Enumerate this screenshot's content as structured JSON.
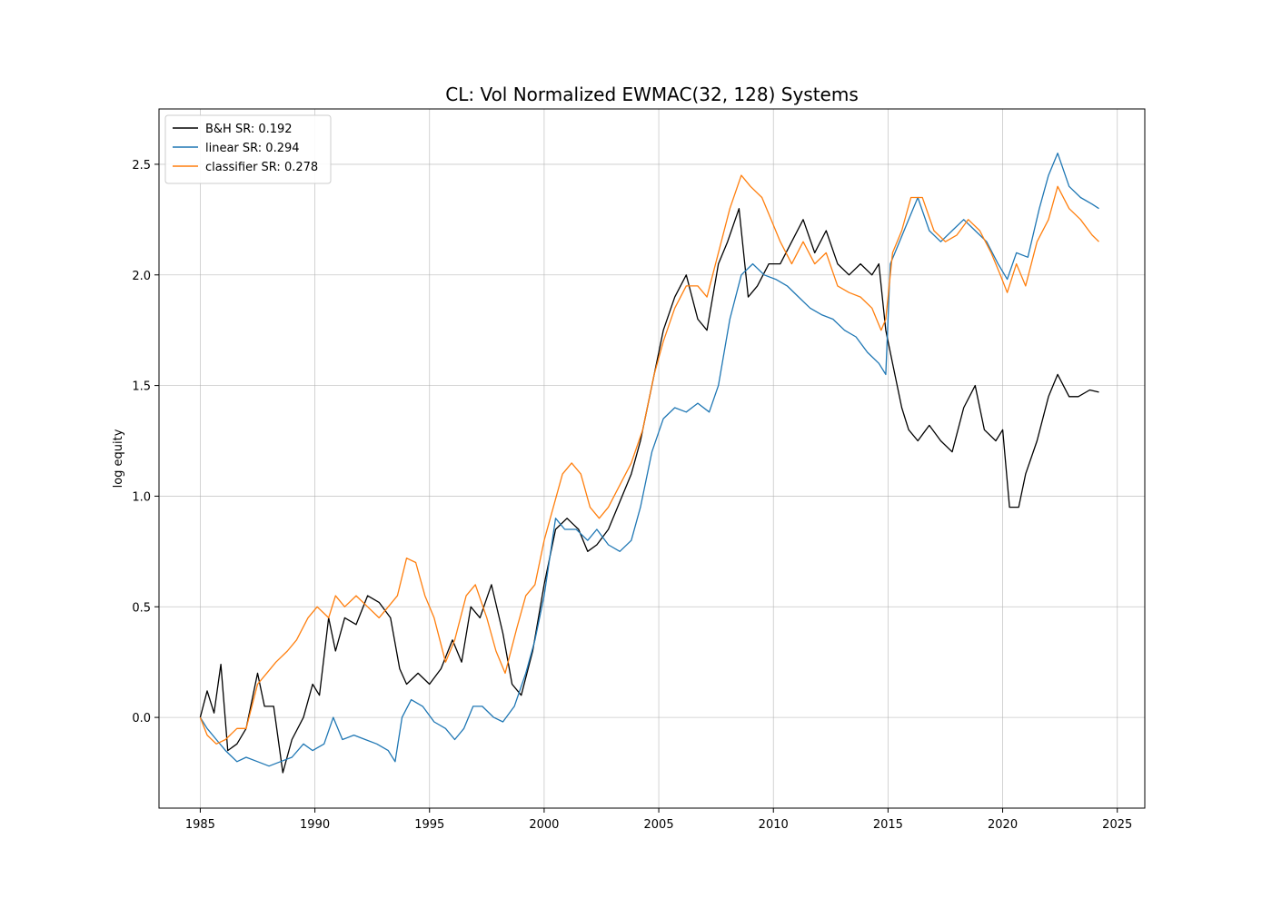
{
  "chart_data": {
    "type": "line",
    "title": "CL: Vol Normalized EWMAC(32, 128) Systems",
    "xlabel": "",
    "ylabel": "log equity",
    "xlim": [
      1983.2,
      2026.2
    ],
    "ylim": [
      -0.41,
      2.75
    ],
    "x_ticks": [
      1985,
      1990,
      1995,
      2000,
      2005,
      2010,
      2015,
      2020,
      2025
    ],
    "y_ticks": [
      0.0,
      0.5,
      1.0,
      1.5,
      2.0,
      2.5
    ],
    "grid": true,
    "legend_position": "top-left",
    "series": [
      {
        "name": "B&H SR: 0.192",
        "color": "#000000",
        "points": [
          [
            1985.0,
            0.0
          ],
          [
            1985.3,
            0.12
          ],
          [
            1985.6,
            0.02
          ],
          [
            1985.9,
            0.24
          ],
          [
            1986.2,
            -0.15
          ],
          [
            1986.6,
            -0.12
          ],
          [
            1987.0,
            -0.05
          ],
          [
            1987.5,
            0.2
          ],
          [
            1987.8,
            0.05
          ],
          [
            1988.2,
            0.05
          ],
          [
            1988.6,
            -0.25
          ],
          [
            1989.0,
            -0.1
          ],
          [
            1989.5,
            0.0
          ],
          [
            1989.9,
            0.15
          ],
          [
            1990.2,
            0.1
          ],
          [
            1990.6,
            0.45
          ],
          [
            1990.9,
            0.3
          ],
          [
            1991.3,
            0.45
          ],
          [
            1991.8,
            0.42
          ],
          [
            1992.3,
            0.55
          ],
          [
            1992.8,
            0.52
          ],
          [
            1993.3,
            0.45
          ],
          [
            1993.7,
            0.22
          ],
          [
            1994.0,
            0.15
          ],
          [
            1994.5,
            0.2
          ],
          [
            1995.0,
            0.15
          ],
          [
            1995.5,
            0.22
          ],
          [
            1996.0,
            0.35
          ],
          [
            1996.4,
            0.25
          ],
          [
            1996.8,
            0.5
          ],
          [
            1997.2,
            0.45
          ],
          [
            1997.7,
            0.6
          ],
          [
            1998.2,
            0.38
          ],
          [
            1998.6,
            0.15
          ],
          [
            1999.0,
            0.1
          ],
          [
            1999.5,
            0.3
          ],
          [
            2000.0,
            0.6
          ],
          [
            2000.5,
            0.85
          ],
          [
            2001.0,
            0.9
          ],
          [
            2001.5,
            0.85
          ],
          [
            2001.9,
            0.75
          ],
          [
            2002.3,
            0.78
          ],
          [
            2002.8,
            0.85
          ],
          [
            2003.2,
            0.95
          ],
          [
            2003.8,
            1.1
          ],
          [
            2004.2,
            1.25
          ],
          [
            2004.7,
            1.5
          ],
          [
            2005.2,
            1.75
          ],
          [
            2005.7,
            1.9
          ],
          [
            2006.2,
            2.0
          ],
          [
            2006.7,
            1.8
          ],
          [
            2007.1,
            1.75
          ],
          [
            2007.6,
            2.05
          ],
          [
            2008.0,
            2.15
          ],
          [
            2008.5,
            2.3
          ],
          [
            2008.9,
            1.9
          ],
          [
            2009.3,
            1.95
          ],
          [
            2009.8,
            2.05
          ],
          [
            2010.3,
            2.05
          ],
          [
            2010.8,
            2.15
          ],
          [
            2011.3,
            2.25
          ],
          [
            2011.8,
            2.1
          ],
          [
            2012.3,
            2.2
          ],
          [
            2012.8,
            2.05
          ],
          [
            2013.3,
            2.0
          ],
          [
            2013.8,
            2.05
          ],
          [
            2014.3,
            2.0
          ],
          [
            2014.6,
            2.05
          ],
          [
            2014.9,
            1.75
          ],
          [
            2015.2,
            1.6
          ],
          [
            2015.6,
            1.4
          ],
          [
            2015.9,
            1.3
          ],
          [
            2016.3,
            1.25
          ],
          [
            2016.8,
            1.32
          ],
          [
            2017.3,
            1.25
          ],
          [
            2017.8,
            1.2
          ],
          [
            2018.3,
            1.4
          ],
          [
            2018.8,
            1.5
          ],
          [
            2019.2,
            1.3
          ],
          [
            2019.7,
            1.25
          ],
          [
            2020.0,
            1.3
          ],
          [
            2020.3,
            0.95
          ],
          [
            2020.7,
            0.95
          ],
          [
            2021.0,
            1.1
          ],
          [
            2021.5,
            1.25
          ],
          [
            2022.0,
            1.45
          ],
          [
            2022.4,
            1.55
          ],
          [
            2022.9,
            1.45
          ],
          [
            2023.3,
            1.45
          ],
          [
            2023.8,
            1.48
          ],
          [
            2024.2,
            1.47
          ]
        ]
      },
      {
        "name": "linear SR: 0.294",
        "color": "#1f77b4",
        "points": [
          [
            1985.0,
            0.0
          ],
          [
            1985.3,
            -0.05
          ],
          [
            1985.7,
            -0.1
          ],
          [
            1986.1,
            -0.15
          ],
          [
            1986.6,
            -0.2
          ],
          [
            1987.0,
            -0.18
          ],
          [
            1987.5,
            -0.2
          ],
          [
            1988.0,
            -0.22
          ],
          [
            1988.5,
            -0.2
          ],
          [
            1989.0,
            -0.18
          ],
          [
            1989.5,
            -0.12
          ],
          [
            1989.9,
            -0.15
          ],
          [
            1990.4,
            -0.12
          ],
          [
            1990.8,
            0.0
          ],
          [
            1991.2,
            -0.1
          ],
          [
            1991.7,
            -0.08
          ],
          [
            1992.2,
            -0.1
          ],
          [
            1992.7,
            -0.12
          ],
          [
            1993.2,
            -0.15
          ],
          [
            1993.5,
            -0.2
          ],
          [
            1993.8,
            0.0
          ],
          [
            1994.2,
            0.08
          ],
          [
            1994.7,
            0.05
          ],
          [
            1995.2,
            -0.02
          ],
          [
            1995.7,
            -0.05
          ],
          [
            1996.1,
            -0.1
          ],
          [
            1996.5,
            -0.05
          ],
          [
            1996.9,
            0.05
          ],
          [
            1997.3,
            0.05
          ],
          [
            1997.8,
            0.0
          ],
          [
            1998.2,
            -0.02
          ],
          [
            1998.7,
            0.05
          ],
          [
            1999.2,
            0.2
          ],
          [
            1999.6,
            0.35
          ],
          [
            2000.0,
            0.55
          ],
          [
            2000.5,
            0.9
          ],
          [
            2000.9,
            0.85
          ],
          [
            2001.4,
            0.85
          ],
          [
            2001.9,
            0.8
          ],
          [
            2002.3,
            0.85
          ],
          [
            2002.8,
            0.78
          ],
          [
            2003.3,
            0.75
          ],
          [
            2003.8,
            0.8
          ],
          [
            2004.2,
            0.95
          ],
          [
            2004.7,
            1.2
          ],
          [
            2005.2,
            1.35
          ],
          [
            2005.7,
            1.4
          ],
          [
            2006.2,
            1.38
          ],
          [
            2006.7,
            1.42
          ],
          [
            2007.2,
            1.38
          ],
          [
            2007.6,
            1.5
          ],
          [
            2008.1,
            1.8
          ],
          [
            2008.6,
            2.0
          ],
          [
            2009.1,
            2.05
          ],
          [
            2009.6,
            2.0
          ],
          [
            2010.1,
            1.98
          ],
          [
            2010.6,
            1.95
          ],
          [
            2011.1,
            1.9
          ],
          [
            2011.6,
            1.85
          ],
          [
            2012.1,
            1.82
          ],
          [
            2012.6,
            1.8
          ],
          [
            2013.1,
            1.75
          ],
          [
            2013.6,
            1.72
          ],
          [
            2014.1,
            1.65
          ],
          [
            2014.6,
            1.6
          ],
          [
            2014.9,
            1.55
          ],
          [
            2015.1,
            2.05
          ],
          [
            2015.5,
            2.15
          ],
          [
            2015.9,
            2.25
          ],
          [
            2016.3,
            2.35
          ],
          [
            2016.8,
            2.2
          ],
          [
            2017.3,
            2.15
          ],
          [
            2017.8,
            2.2
          ],
          [
            2018.3,
            2.25
          ],
          [
            2018.8,
            2.2
          ],
          [
            2019.3,
            2.15
          ],
          [
            2019.8,
            2.05
          ],
          [
            2020.2,
            1.98
          ],
          [
            2020.6,
            2.1
          ],
          [
            2021.1,
            2.08
          ],
          [
            2021.6,
            2.3
          ],
          [
            2022.0,
            2.45
          ],
          [
            2022.4,
            2.55
          ],
          [
            2022.9,
            2.4
          ],
          [
            2023.4,
            2.35
          ],
          [
            2023.9,
            2.32
          ],
          [
            2024.2,
            2.3
          ]
        ]
      },
      {
        "name": "classifier SR: 0.278",
        "color": "#ff7f0e",
        "points": [
          [
            1985.0,
            0.0
          ],
          [
            1985.3,
            -0.08
          ],
          [
            1985.7,
            -0.12
          ],
          [
            1986.1,
            -0.1
          ],
          [
            1986.6,
            -0.05
          ],
          [
            1987.0,
            -0.05
          ],
          [
            1987.5,
            0.15
          ],
          [
            1987.9,
            0.2
          ],
          [
            1988.3,
            0.25
          ],
          [
            1988.8,
            0.3
          ],
          [
            1989.2,
            0.35
          ],
          [
            1989.7,
            0.45
          ],
          [
            1990.1,
            0.5
          ],
          [
            1990.6,
            0.45
          ],
          [
            1990.9,
            0.55
          ],
          [
            1991.3,
            0.5
          ],
          [
            1991.8,
            0.55
          ],
          [
            1992.3,
            0.5
          ],
          [
            1992.8,
            0.45
          ],
          [
            1993.2,
            0.5
          ],
          [
            1993.6,
            0.55
          ],
          [
            1994.0,
            0.72
          ],
          [
            1994.4,
            0.7
          ],
          [
            1994.8,
            0.55
          ],
          [
            1995.2,
            0.45
          ],
          [
            1995.7,
            0.25
          ],
          [
            1996.1,
            0.35
          ],
          [
            1996.6,
            0.55
          ],
          [
            1997.0,
            0.6
          ],
          [
            1997.5,
            0.45
          ],
          [
            1997.9,
            0.3
          ],
          [
            1998.3,
            0.2
          ],
          [
            1998.8,
            0.4
          ],
          [
            1999.2,
            0.55
          ],
          [
            1999.6,
            0.6
          ],
          [
            2000.0,
            0.8
          ],
          [
            2000.4,
            0.95
          ],
          [
            2000.8,
            1.1
          ],
          [
            2001.2,
            1.15
          ],
          [
            2001.6,
            1.1
          ],
          [
            2002.0,
            0.95
          ],
          [
            2002.4,
            0.9
          ],
          [
            2002.8,
            0.95
          ],
          [
            2003.3,
            1.05
          ],
          [
            2003.8,
            1.15
          ],
          [
            2004.3,
            1.3
          ],
          [
            2004.8,
            1.55
          ],
          [
            2005.2,
            1.7
          ],
          [
            2005.7,
            1.85
          ],
          [
            2006.2,
            1.95
          ],
          [
            2006.7,
            1.95
          ],
          [
            2007.1,
            1.9
          ],
          [
            2007.6,
            2.1
          ],
          [
            2008.1,
            2.3
          ],
          [
            2008.6,
            2.45
          ],
          [
            2009.0,
            2.4
          ],
          [
            2009.5,
            2.35
          ],
          [
            2009.9,
            2.25
          ],
          [
            2010.3,
            2.15
          ],
          [
            2010.8,
            2.05
          ],
          [
            2011.3,
            2.15
          ],
          [
            2011.8,
            2.05
          ],
          [
            2012.3,
            2.1
          ],
          [
            2012.8,
            1.95
          ],
          [
            2013.3,
            1.92
          ],
          [
            2013.8,
            1.9
          ],
          [
            2014.3,
            1.85
          ],
          [
            2014.7,
            1.75
          ],
          [
            2014.9,
            1.8
          ],
          [
            2015.2,
            2.1
          ],
          [
            2015.6,
            2.2
          ],
          [
            2016.0,
            2.35
          ],
          [
            2016.5,
            2.35
          ],
          [
            2017.0,
            2.2
          ],
          [
            2017.5,
            2.15
          ],
          [
            2018.0,
            2.18
          ],
          [
            2018.5,
            2.25
          ],
          [
            2019.0,
            2.2
          ],
          [
            2019.5,
            2.1
          ],
          [
            2019.9,
            2.0
          ],
          [
            2020.2,
            1.92
          ],
          [
            2020.6,
            2.05
          ],
          [
            2021.0,
            1.95
          ],
          [
            2021.5,
            2.15
          ],
          [
            2022.0,
            2.25
          ],
          [
            2022.4,
            2.4
          ],
          [
            2022.9,
            2.3
          ],
          [
            2023.4,
            2.25
          ],
          [
            2023.9,
            2.18
          ],
          [
            2024.2,
            2.15
          ]
        ]
      }
    ]
  }
}
